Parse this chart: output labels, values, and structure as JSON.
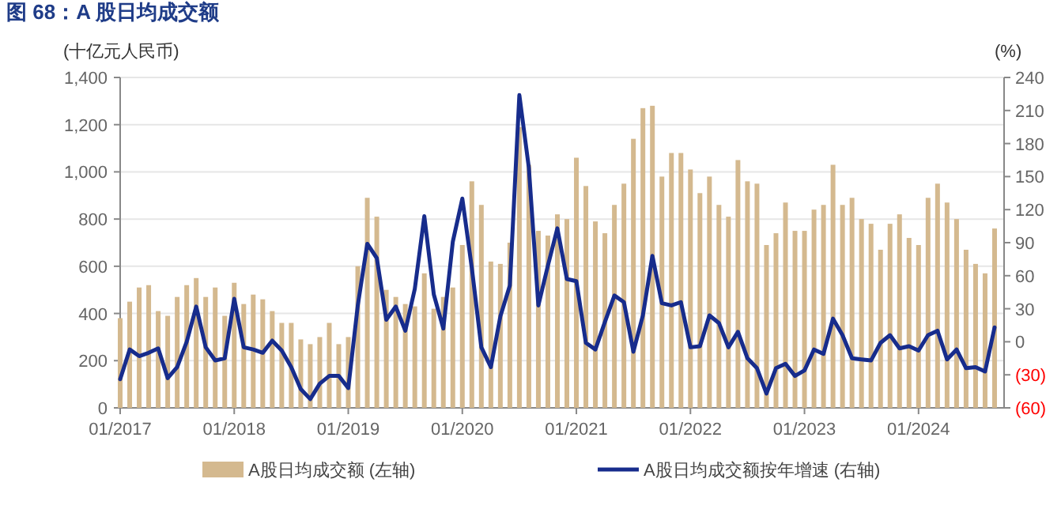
{
  "chart_data": {
    "type": "bar",
    "title": "图 68：A 股日均成交额",
    "ylabel": "(十亿元人民币)",
    "y2label": "(%)",
    "x": [
      "2017-01",
      "2017-02",
      "2017-03",
      "2017-04",
      "2017-05",
      "2017-06",
      "2017-07",
      "2017-08",
      "2017-09",
      "2017-10",
      "2017-11",
      "2017-12",
      "2018-01",
      "2018-02",
      "2018-03",
      "2018-04",
      "2018-05",
      "2018-06",
      "2018-07",
      "2018-08",
      "2018-09",
      "2018-10",
      "2018-11",
      "2018-12",
      "2019-01",
      "2019-02",
      "2019-03",
      "2019-04",
      "2019-05",
      "2019-06",
      "2019-07",
      "2019-08",
      "2019-09",
      "2019-10",
      "2019-11",
      "2019-12",
      "2020-01",
      "2020-02",
      "2020-03",
      "2020-04",
      "2020-05",
      "2020-06",
      "2020-07",
      "2020-08",
      "2020-09",
      "2020-10",
      "2020-11",
      "2020-12",
      "2021-01",
      "2021-02",
      "2021-03",
      "2021-04",
      "2021-05",
      "2021-06",
      "2021-07",
      "2021-08",
      "2021-09",
      "2021-10",
      "2021-11",
      "2021-12",
      "2022-01",
      "2022-02",
      "2022-03",
      "2022-04",
      "2022-05",
      "2022-06",
      "2022-07",
      "2022-08",
      "2022-09",
      "2022-10",
      "2022-11",
      "2022-12",
      "2023-01",
      "2023-02",
      "2023-03",
      "2023-04",
      "2023-05",
      "2023-06",
      "2023-07",
      "2023-08",
      "2023-09",
      "2023-10",
      "2023-11",
      "2023-12",
      "2024-01",
      "2024-02",
      "2024-03",
      "2024-04",
      "2024-05",
      "2024-06",
      "2024-07",
      "2024-08",
      "2024-09"
    ],
    "series": [
      {
        "name": "A股日均成交额 (左轴)",
        "color": "#d4b98f",
        "values": [
          380,
          450,
          510,
          520,
          410,
          390,
          470,
          520,
          550,
          470,
          510,
          390,
          530,
          440,
          480,
          460,
          410,
          360,
          360,
          290,
          270,
          300,
          360,
          270,
          300,
          600,
          890,
          810,
          500,
          470,
          440,
          430,
          570,
          420,
          470,
          510,
          690,
          960,
          860,
          620,
          610,
          700,
          1190,
          1030,
          750,
          730,
          820,
          800,
          1060,
          940,
          790,
          740,
          860,
          950,
          1140,
          1270,
          1280,
          980,
          1080,
          1080,
          1010,
          910,
          980,
          860,
          810,
          1050,
          960,
          950,
          690,
          740,
          870,
          750,
          750,
          840,
          860,
          1030,
          860,
          890,
          800,
          780,
          670,
          780,
          820,
          720,
          690,
          890,
          950,
          870,
          800,
          670,
          610,
          570,
          760
        ]
      },
      {
        "name": "A股日均成交额按年增速 (右轴)",
        "type": "line",
        "axis": "y2",
        "color": "#172c8c",
        "values": [
          -34,
          -7,
          -13,
          -10,
          -6,
          -33,
          -23,
          0,
          32,
          -5,
          -17,
          -15,
          39,
          -5,
          -7,
          -10,
          1,
          -8,
          -23,
          -43,
          -52,
          -38,
          -31,
          -31,
          -42,
          33,
          89,
          76,
          20,
          32,
          10,
          48,
          114,
          43,
          12,
          91,
          130,
          67,
          -5,
          -23,
          23,
          51,
          224,
          158,
          33,
          69,
          103,
          57,
          55,
          -1,
          -7,
          18,
          42,
          36,
          -9,
          24,
          78,
          35,
          33,
          36,
          -5,
          -4,
          24,
          17,
          -5,
          9,
          -15,
          -24,
          -47,
          -24,
          -20,
          -31,
          -26,
          -7,
          -11,
          21,
          6,
          -15,
          -16,
          -17,
          -1,
          6,
          -6,
          -4,
          -8,
          6,
          10,
          -16,
          -7,
          -24,
          -23,
          -27,
          13
        ]
      }
    ],
    "xlim": [
      "2017-01",
      "2024-10"
    ],
    "xticks": [
      {
        "value": "2017-01",
        "label": "01/2017"
      },
      {
        "value": "2018-01",
        "label": "01/2018"
      },
      {
        "value": "2019-01",
        "label": "01/2019"
      },
      {
        "value": "2020-01",
        "label": "01/2020"
      },
      {
        "value": "2021-01",
        "label": "01/2021"
      },
      {
        "value": "2022-01",
        "label": "01/2022"
      },
      {
        "value": "2023-01",
        "label": "01/2023"
      },
      {
        "value": "2024-01",
        "label": "01/2024"
      }
    ],
    "ylim": [
      0,
      1400
    ],
    "yticks": [
      {
        "value": 0,
        "label": "0"
      },
      {
        "value": 200,
        "label": "200"
      },
      {
        "value": 400,
        "label": "400"
      },
      {
        "value": 600,
        "label": "600"
      },
      {
        "value": 800,
        "label": "800"
      },
      {
        "value": 1000,
        "label": "1,000"
      },
      {
        "value": 1200,
        "label": "1,200"
      },
      {
        "value": 1400,
        "label": "1,400"
      }
    ],
    "y2lim": [
      -60,
      240
    ],
    "y2ticks": [
      {
        "value": -60,
        "label": "(60)"
      },
      {
        "value": -30,
        "label": "(30)"
      },
      0,
      30,
      60,
      90,
      120,
      150,
      180,
      210,
      240
    ],
    "grid": "y",
    "legend": "bottom"
  }
}
